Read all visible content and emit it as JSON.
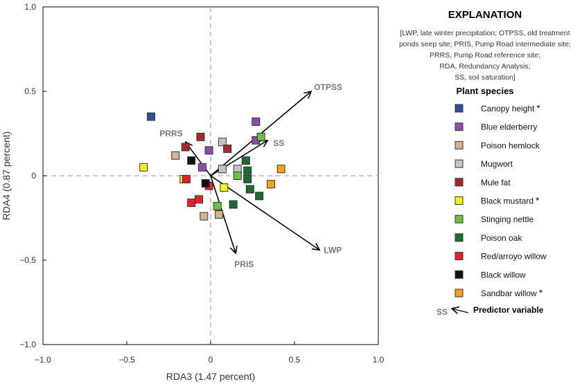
{
  "chart_data": {
    "type": "scatter",
    "xlabel": "RDA3 (1.47 percent)",
    "ylabel": "RDA4 (0.87 percent)",
    "xlim": [
      -1,
      1
    ],
    "ylim": [
      -1,
      1
    ],
    "xticks": [
      "−1.0",
      "−0.5",
      "0",
      "0.5",
      "1.0"
    ],
    "yticks": [
      "−1.0",
      "−0.5",
      "0",
      "0.5",
      "1.0"
    ],
    "xtick_values": [
      -1,
      -0.5,
      0,
      0.5,
      1
    ],
    "ytick_values": [
      -1,
      -0.5,
      0,
      0.5,
      1
    ],
    "zero_lines": "dashed",
    "legend_placement": "right",
    "series": [
      {
        "name": "Canopy height",
        "star": true,
        "color": "#2e4fa0",
        "points": [
          [
            -0.355,
            0.35
          ]
        ]
      },
      {
        "name": "Blue elderberry",
        "star": false,
        "color": "#8b4fa8",
        "points": [
          [
            0.27,
            0.32
          ],
          [
            0.27,
            0.21
          ],
          [
            -0.01,
            0.15
          ],
          [
            -0.05,
            0.05
          ]
        ]
      },
      {
        "name": "Poison hemlock",
        "star": false,
        "color": "#d4b48c",
        "points": [
          [
            -0.21,
            0.12
          ],
          [
            -0.04,
            -0.24
          ],
          [
            0.05,
            -0.23
          ]
        ]
      },
      {
        "name": "Mugwort",
        "star": false,
        "color": "#c4c4c4",
        "points": [
          [
            0.07,
            0.2
          ],
          [
            0.07,
            0.04
          ],
          [
            0.16,
            0.04
          ]
        ]
      },
      {
        "name": "Mule fat",
        "star": false,
        "color": "#a52a2a",
        "points": [
          [
            -0.06,
            0.23
          ],
          [
            0.1,
            0.16
          ],
          [
            -0.15,
            0.17
          ]
        ]
      },
      {
        "name": "Black mustard",
        "star": true,
        "color": "#f5ef1a",
        "points": [
          [
            -0.4,
            0.05
          ],
          [
            -0.16,
            -0.02
          ],
          [
            0.08,
            -0.07
          ]
        ]
      },
      {
        "name": "Stinging nettle",
        "star": false,
        "color": "#6cc04a",
        "points": [
          [
            0.3,
            0.23
          ],
          [
            0.16,
            0.0
          ],
          [
            0.04,
            -0.18
          ]
        ]
      },
      {
        "name": "Poison oak",
        "star": false,
        "color": "#1a6b35",
        "points": [
          [
            0.21,
            0.09
          ],
          [
            0.22,
            0.03
          ],
          [
            0.22,
            -0.02
          ],
          [
            0.235,
            -0.08
          ],
          [
            0.29,
            -0.12
          ],
          [
            0.135,
            -0.17
          ]
        ]
      },
      {
        "name": "Red/arroyo willow",
        "star": false,
        "color": "#e8202a",
        "points": [
          [
            -0.145,
            -0.02
          ],
          [
            -0.115,
            -0.16
          ],
          [
            -0.07,
            -0.14
          ],
          [
            -0.01,
            -0.06
          ]
        ]
      },
      {
        "name": "Black willow",
        "star": false,
        "color": "#111111",
        "points": [
          [
            -0.115,
            0.09
          ],
          [
            -0.03,
            -0.045
          ]
        ]
      },
      {
        "name": "Sandbar willow",
        "star": true,
        "color": "#f7a11a",
        "points": [
          [
            0.42,
            0.04
          ],
          [
            0.36,
            -0.05
          ]
        ]
      }
    ],
    "vectors": [
      {
        "name": "OTPSS",
        "x": 0.6,
        "y": 0.5
      },
      {
        "name": "SS",
        "x": 0.34,
        "y": 0.21
      },
      {
        "name": "LWP",
        "x": 0.65,
        "y": -0.44
      },
      {
        "name": "PRIS",
        "x": 0.15,
        "y": -0.46
      },
      {
        "name": "PRRS",
        "x": -0.15,
        "y": 0.2
      }
    ]
  },
  "legend": {
    "title": "EXPLANATION",
    "note_lines": [
      "[LWP, late winter precipitation; OTPSS, old treatment",
      "ponds seep site; PRIS, Pump Road intermediate site;",
      "PRRS, Pump Road reference site;",
      "RDA, Redundancy Analysis;",
      "SS, soil saturation]"
    ],
    "species_heading": "Plant species",
    "star": "*",
    "predictor_symbol": "SS",
    "predictor_label": "Predictor variable"
  }
}
